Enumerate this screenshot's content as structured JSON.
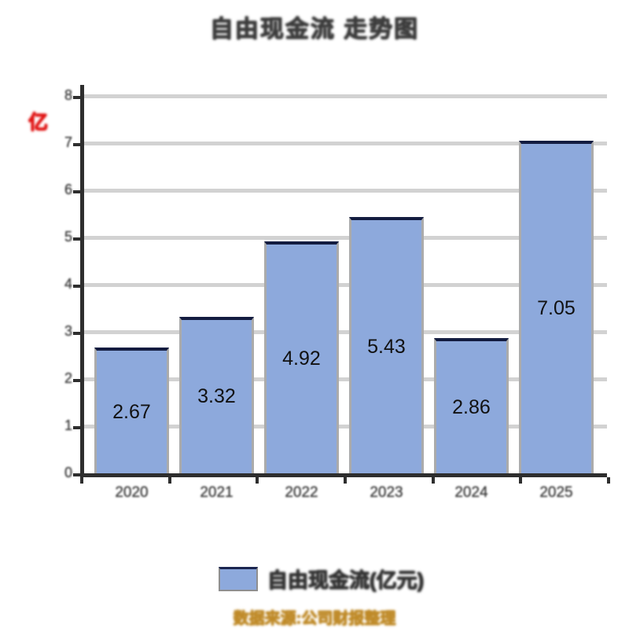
{
  "title": {
    "text": "自由现金流 走势图"
  },
  "unit_label": {
    "text": "亿"
  },
  "chart_data": {
    "type": "bar",
    "title": "自由现金流 走势图",
    "categories": [
      "2020",
      "2021",
      "2022",
      "2023",
      "2024",
      "2025"
    ],
    "values": [
      2.67,
      3.32,
      4.92,
      5.43,
      2.86,
      7.05
    ],
    "value_labels": [
      "2.67",
      "3.32",
      "4.92",
      "5.43",
      "2.86",
      "7.05"
    ],
    "xlabel": "",
    "ylabel": "亿",
    "ylim": [
      0,
      8
    ],
    "y_tick_step": 1,
    "y_tick_labels": [
      "0",
      "1",
      "2",
      "3",
      "4",
      "5",
      "6",
      "7",
      "8"
    ],
    "grid": true,
    "legend_position": "bottom",
    "bar_color": "#8da9dc",
    "bar_border_side_color": "#ababab",
    "bar_border_top_color": "#131c40",
    "value_label_color": "#111111"
  },
  "legend": {
    "label": "自由现金流(亿元)",
    "swatch_color": "#8da9dc"
  },
  "footer": {
    "source": "数据来源:公司财报整理"
  },
  "colors": {
    "background": "#ffffff",
    "title_text": "#3c3c3c",
    "axis": "#2e2e2e",
    "gridline": "#d2d2d2",
    "unit_label": "#e01313",
    "source_text": "#bf8a28",
    "tick_text": "#3e3e3e"
  }
}
